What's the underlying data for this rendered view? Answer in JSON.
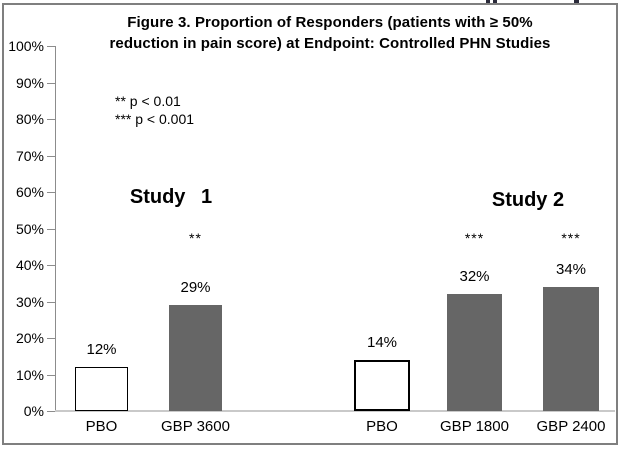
{
  "chart": {
    "title_line1": "Figure 3. Proportion of Responders (patients with ≥ 50%",
    "title_line2": "reduction in pain score) at Endpoint: Controlled PHN Studies",
    "annotations": {
      "sig2": "** p < 0.01",
      "sig3": "*** p < 0.001"
    },
    "group_labels": {
      "study1": "Study 1",
      "study2": "Study 2"
    }
  },
  "chart_data": {
    "type": "bar",
    "title": "Figure 3. Proportion of Responders (patients with ≥ 50% reduction in pain score) at Endpoint: Controlled PHN Studies",
    "xlabel": "",
    "ylabel": "",
    "ylim": [
      0,
      100
    ],
    "grid": false,
    "legend_position": "upper-left annotations",
    "ytick_labels": [
      "100%",
      "90%",
      "80%",
      "70%",
      "60%",
      "50%",
      "40%",
      "30%",
      "20%",
      "10%",
      "0%"
    ],
    "annotations": [
      "** p < 0.01",
      "*** p < 0.001"
    ],
    "groups": [
      {
        "name": "Study 1",
        "bars": [
          {
            "category": "PBO",
            "value": 12,
            "value_label": "12%",
            "significance": "",
            "fill": "#ffffff",
            "border_color": "#000000"
          },
          {
            "category": "GBP 3600",
            "value": 29,
            "value_label": "29%",
            "significance": "**",
            "fill": "#666666",
            "border_color": "#666666"
          }
        ]
      },
      {
        "name": "Study 2",
        "bars": [
          {
            "category": "PBO",
            "value": 14,
            "value_label": "14%",
            "significance": "",
            "fill": "#ffffff",
            "border_color": "#000000"
          },
          {
            "category": "GBP 1800",
            "value": 32,
            "value_label": "32%",
            "significance": "***",
            "fill": "#666666",
            "border_color": "#666666"
          },
          {
            "category": "GBP 2400",
            "value": 34,
            "value_label": "34%",
            "significance": "***",
            "fill": "#666666",
            "border_color": "#666666"
          }
        ]
      }
    ]
  },
  "colors": {
    "bar_gray": "#666666",
    "bar_white": "#ffffff",
    "axis_line": "#8c8c8c",
    "baseline": "#c9c9c9",
    "frame_border": "#7f7f7f",
    "text": "#000000"
  }
}
